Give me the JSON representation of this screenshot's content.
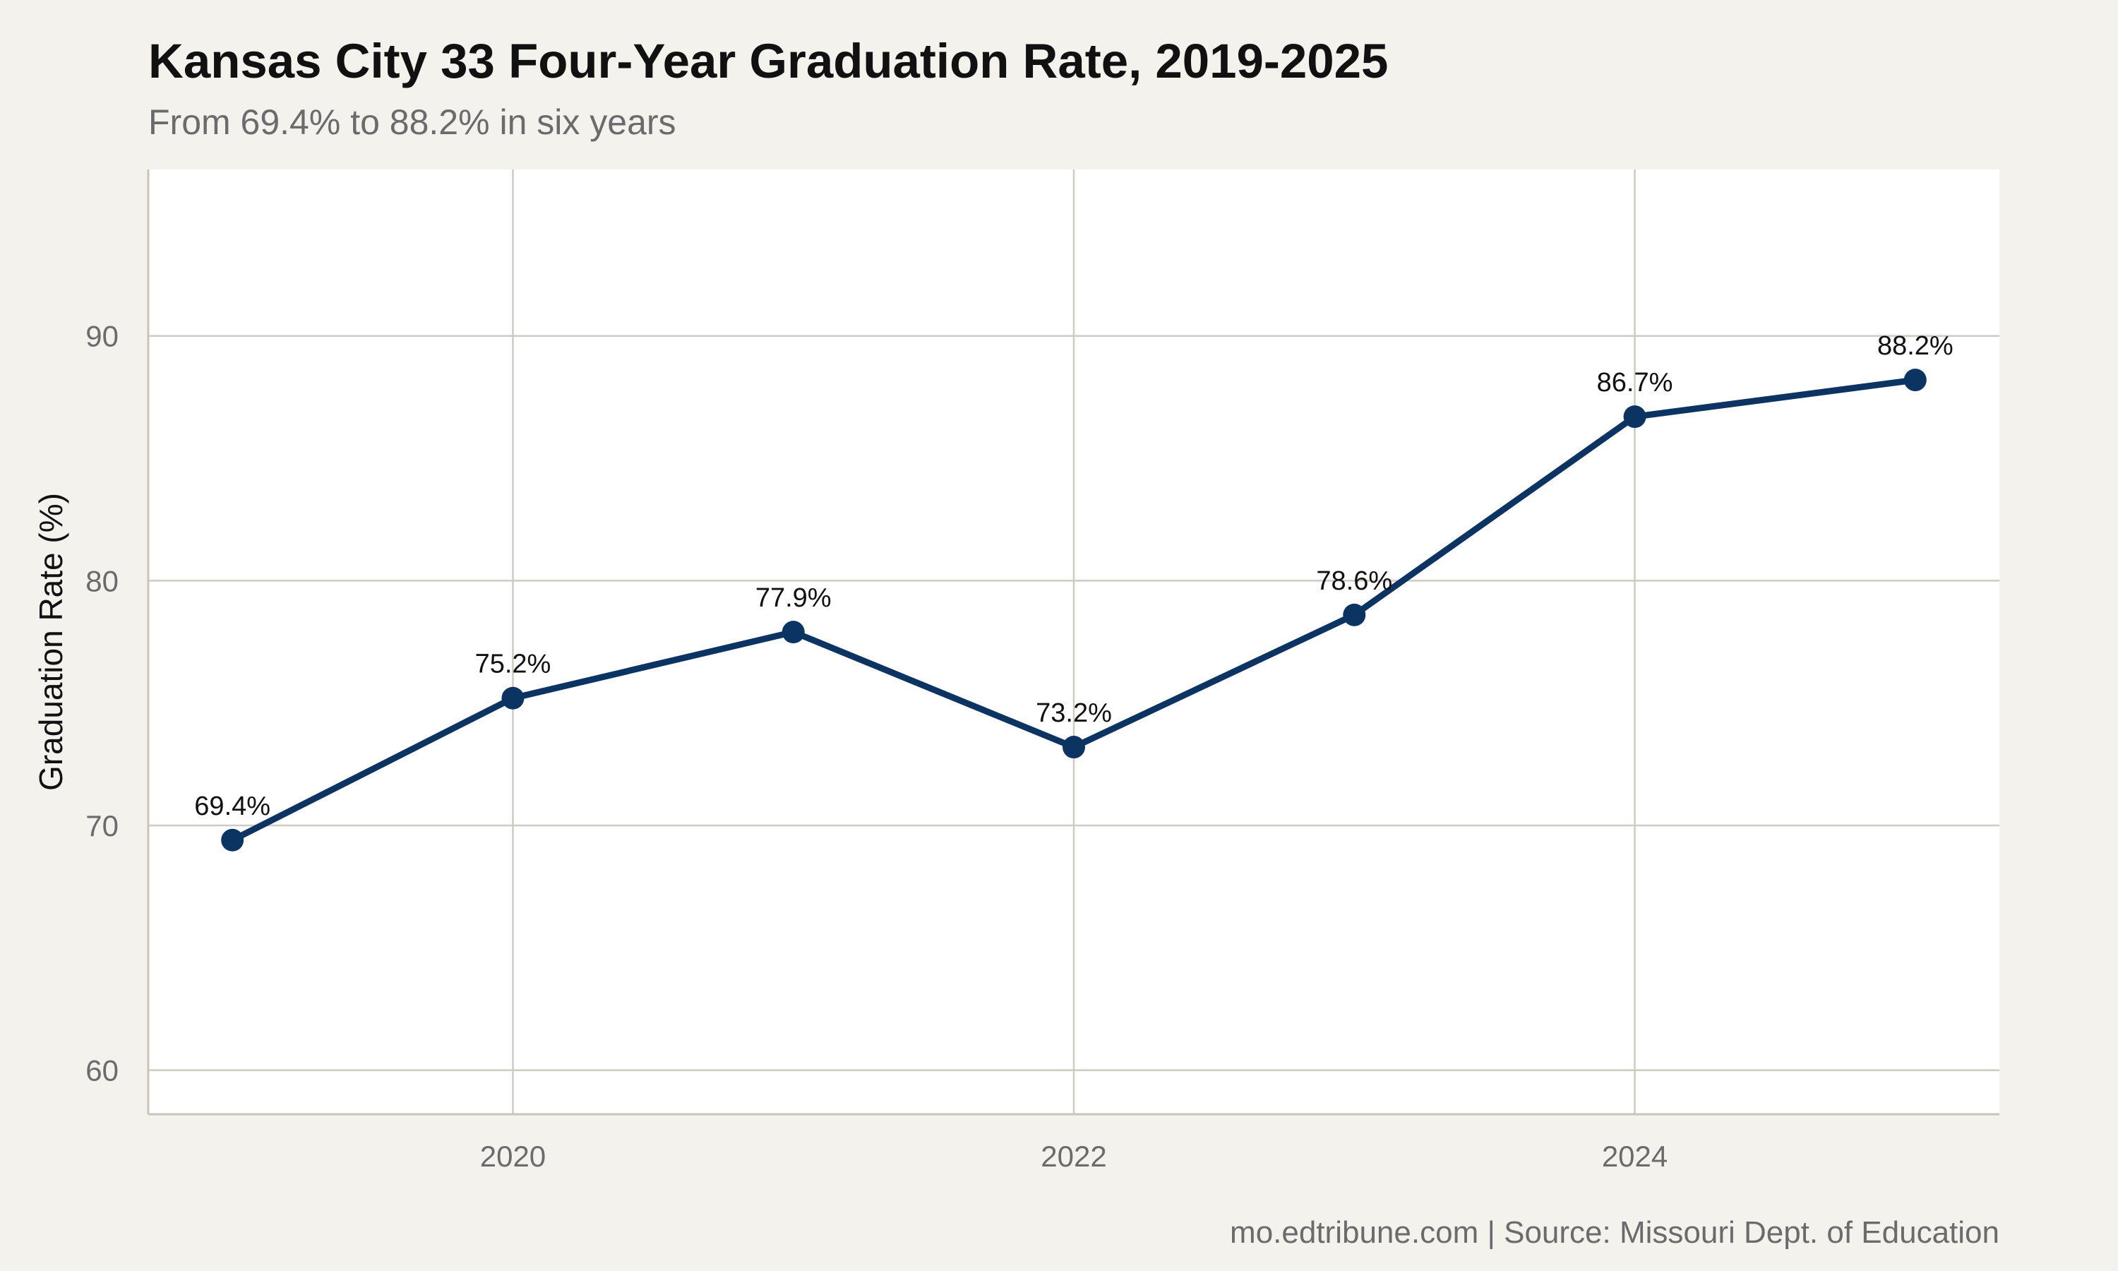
{
  "chart_data": {
    "type": "line",
    "title": "Kansas City 33 Four-Year Graduation Rate, 2019-2025",
    "subtitle": "From 69.4% to 88.2% in six years",
    "ylabel": "Graduation Rate (%)",
    "xlabel": "",
    "caption": "mo.edtribune.com | Source: Missouri Dept. of Education",
    "x": [
      2019,
      2020,
      2021,
      2022,
      2023,
      2024,
      2025
    ],
    "series": [
      {
        "values": [
          69.4,
          75.2,
          77.9,
          73.2,
          78.6,
          86.7,
          88.2
        ],
        "labels": [
          "69.4%",
          "75.2%",
          "77.9%",
          "73.2%",
          "78.6%",
          "86.7%",
          "88.2%"
        ],
        "color": "#0b3463"
      }
    ],
    "xticks": [
      "2020",
      "2022",
      "2024"
    ],
    "xtick_values": [
      2020,
      2022,
      2024
    ],
    "yticks": [
      "60",
      "70",
      "80",
      "90"
    ],
    "ytick_values": [
      60,
      70,
      80,
      90
    ],
    "xlim": [
      2018.7,
      2025.3
    ],
    "ylim": [
      58.2,
      96.8
    ],
    "grid": true,
    "legend": "none",
    "colors": {
      "background": "#f4f2ed",
      "panel": "#ffffff",
      "grid": "#cfcbc1",
      "line": "#0b3463"
    }
  }
}
